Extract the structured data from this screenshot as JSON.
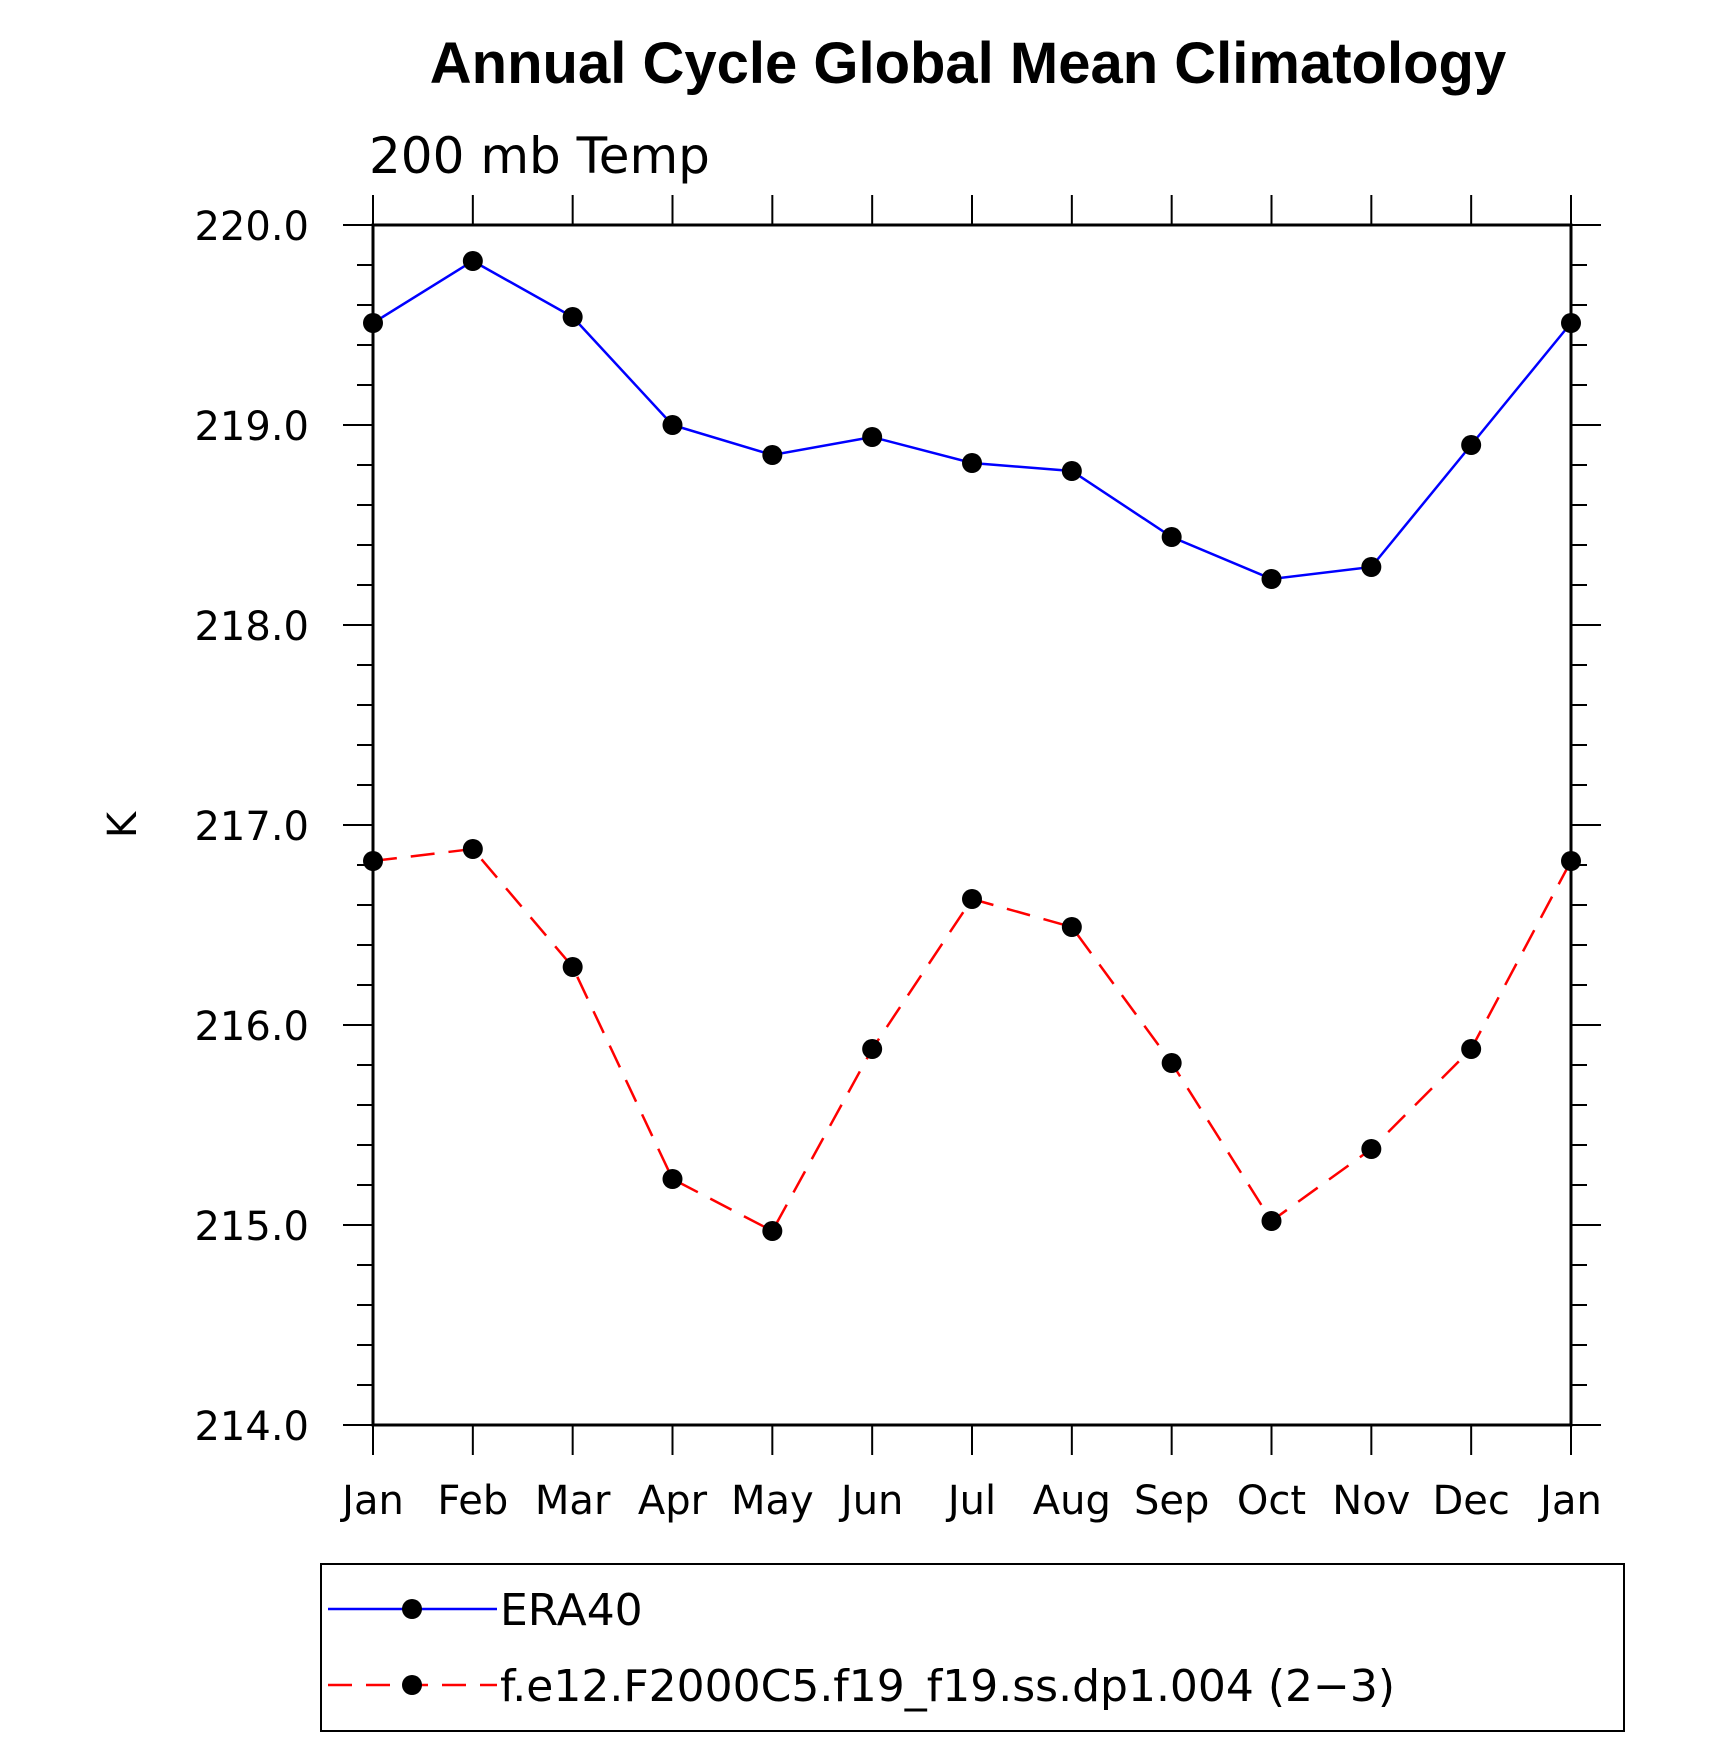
{
  "chart_data": {
    "type": "line",
    "title": "Annual Cycle Global Mean Climatology",
    "subtitle": "200 mb Temp",
    "ylabel": "K",
    "xlabel": "",
    "categories": [
      "Jan",
      "Feb",
      "Mar",
      "Apr",
      "May",
      "Jun",
      "Jul",
      "Aug",
      "Sep",
      "Oct",
      "Nov",
      "Dec",
      "Jan"
    ],
    "ylim": [
      214.0,
      220.0
    ],
    "yticks": [
      "220.0",
      "219.0",
      "218.0",
      "217.0",
      "216.0",
      "215.0",
      "214.0"
    ],
    "grid": false,
    "legend_position": "bottom",
    "series": [
      {
        "name": "ERA40",
        "color": "#0000ff",
        "dash": "solid",
        "marker": "filled-circle",
        "values": [
          219.51,
          219.82,
          219.54,
          219.0,
          218.85,
          218.94,
          218.81,
          218.77,
          218.44,
          218.23,
          218.29,
          218.9,
          219.51
        ]
      },
      {
        "name": "f.e12.F2000C5.f19_f19.ss.dp1.004 (2−3)",
        "color": "#ff0000",
        "dash": "dashed",
        "marker": "filled-circle",
        "values": [
          216.82,
          216.88,
          216.29,
          215.23,
          214.97,
          215.88,
          216.63,
          216.49,
          215.81,
          215.02,
          215.38,
          215.88,
          216.82
        ]
      }
    ]
  }
}
